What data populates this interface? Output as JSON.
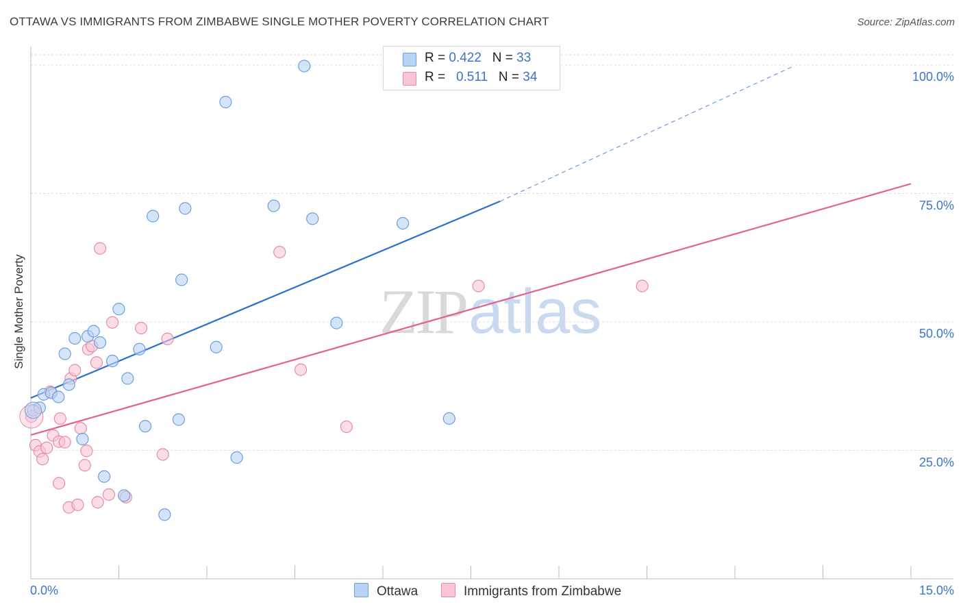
{
  "title": "OTTAWA VS IMMIGRANTS FROM ZIMBABWE SINGLE MOTHER POVERTY CORRELATION CHART",
  "source": "Source: ZipAtlas.com",
  "watermark": {
    "zip": "ZIP",
    "atlas": "atlas"
  },
  "legend": {
    "rows": [
      {
        "r_label": "R = ",
        "r_value": "0.422",
        "n_label": "N = ",
        "n_value": "33"
      },
      {
        "r_label": "R = ",
        "r_value": "0.511",
        "n_label": "N = ",
        "n_value": "34"
      }
    ]
  },
  "colors": {
    "ottawa_fill": "#b8d3f5",
    "ottawa_stroke": "#6b9ee0",
    "ottawa_line": "#2a6fd0",
    "zimbabwe_fill": "#f8c6d6",
    "zimbabwe_stroke": "#e88aa8",
    "zimbabwe_line": "#e0628a",
    "axis_label": "#3b74c9",
    "grid": "#dcdcdc"
  },
  "chart_data": {
    "type": "scatter",
    "title": "OTTAWA VS IMMIGRANTS FROM ZIMBABWE SINGLE MOTHER POVERTY CORRELATION CHART",
    "xlabel": "",
    "ylabel": "Single Mother Poverty",
    "xlim": [
      0,
      15
    ],
    "ylim": [
      0,
      102
    ],
    "x_tick_labels": [
      "0.0%",
      "15.0%"
    ],
    "y_ticks": [
      25,
      50,
      75,
      100
    ],
    "y_tick_labels": [
      "25.0%",
      "50.0%",
      "75.0%",
      "100.0%"
    ],
    "grid": "horizontal dashed",
    "legend_placement": "top-center",
    "series": [
      {
        "name": "Ottawa",
        "color": "#b8d3f5",
        "r": 0.422,
        "n": 33,
        "trend": {
          "x0": 0,
          "y0": 35.2,
          "x1": 8.0,
          "y1": 73.5,
          "dashed_to_x": 13.0,
          "dashed_to_y": 99.8
        },
        "points": [
          [
            0.04,
            32.8
          ],
          [
            0.15,
            33.3
          ],
          [
            0.22,
            35.9
          ],
          [
            0.35,
            36.2
          ],
          [
            0.47,
            35.4
          ],
          [
            0.58,
            43.8
          ],
          [
            0.65,
            37.8
          ],
          [
            0.75,
            46.8
          ],
          [
            0.88,
            27.2
          ],
          [
            0.97,
            47.2
          ],
          [
            1.07,
            48.2
          ],
          [
            1.18,
            46.0
          ],
          [
            1.25,
            19.9
          ],
          [
            1.39,
            42.4
          ],
          [
            1.5,
            52.5
          ],
          [
            1.59,
            16.2
          ],
          [
            1.65,
            39.0
          ],
          [
            1.85,
            44.7
          ],
          [
            1.95,
            29.7
          ],
          [
            2.08,
            70.6
          ],
          [
            2.28,
            12.5
          ],
          [
            2.52,
            31.0
          ],
          [
            2.57,
            58.2
          ],
          [
            2.63,
            72.1
          ],
          [
            3.16,
            45.1
          ],
          [
            3.32,
            92.8
          ],
          [
            3.51,
            23.6
          ],
          [
            4.14,
            72.6
          ],
          [
            4.66,
            99.8
          ],
          [
            4.8,
            70.1
          ],
          [
            5.21,
            49.8
          ],
          [
            6.34,
            69.2
          ],
          [
            7.13,
            31.2
          ]
        ]
      },
      {
        "name": "Immigrants from Zimbabwe",
        "color": "#f8c6d6",
        "r": 0.511,
        "n": 34,
        "trend": {
          "x0": 0,
          "y0": 28.0,
          "x1": 15.0,
          "y1": 76.9
        },
        "points": [
          [
            0.01,
            31.6
          ],
          [
            0.08,
            26.0
          ],
          [
            0.15,
            24.8
          ],
          [
            0.2,
            23.3
          ],
          [
            0.27,
            25.5
          ],
          [
            0.33,
            36.4
          ],
          [
            0.38,
            27.9
          ],
          [
            0.48,
            26.7
          ],
          [
            0.48,
            18.6
          ],
          [
            0.5,
            31.2
          ],
          [
            0.58,
            26.6
          ],
          [
            0.65,
            13.9
          ],
          [
            0.68,
            39.0
          ],
          [
            0.75,
            40.6
          ],
          [
            0.8,
            14.4
          ],
          [
            0.85,
            29.3
          ],
          [
            0.92,
            22.1
          ],
          [
            0.95,
            24.9
          ],
          [
            0.98,
            44.7
          ],
          [
            1.04,
            45.3
          ],
          [
            1.12,
            42.1
          ],
          [
            1.14,
            14.9
          ],
          [
            1.18,
            64.3
          ],
          [
            1.33,
            16.4
          ],
          [
            1.39,
            49.9
          ],
          [
            1.62,
            15.9
          ],
          [
            1.88,
            48.8
          ],
          [
            2.25,
            24.2
          ],
          [
            2.33,
            46.7
          ],
          [
            4.24,
            63.6
          ],
          [
            4.6,
            40.7
          ],
          [
            5.38,
            29.6
          ],
          [
            7.63,
            57.0
          ],
          [
            10.42,
            57.0
          ]
        ]
      }
    ]
  },
  "bottom_legend": [
    "Ottawa",
    "Immigrants from Zimbabwe"
  ]
}
